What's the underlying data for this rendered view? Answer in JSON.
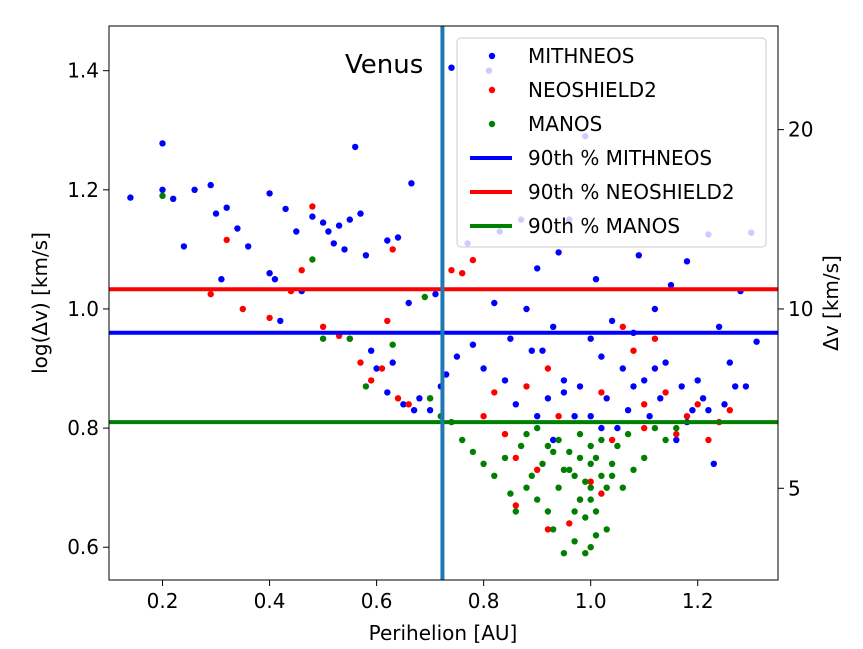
{
  "chart_data": {
    "type": "scatter",
    "xlabel": "Perihelion [AU]",
    "ylabel": "log(Δv) [km/s]",
    "y2label": "Δv [km/s]",
    "xlim": [
      0.1,
      1.35
    ],
    "ylim": [
      0.545,
      1.475
    ],
    "x_ticks": [
      0.2,
      0.4,
      0.6,
      0.8,
      1.0,
      1.2
    ],
    "x_tick_labels": [
      "0.2",
      "0.4",
      "0.6",
      "0.8",
      "1.0",
      "1.2"
    ],
    "y_ticks": [
      0.6,
      0.8,
      1.0,
      1.2,
      1.4
    ],
    "y_tick_labels": [
      "0.6",
      "0.8",
      "1.0",
      "1.2",
      "1.4"
    ],
    "y2_ticks": [
      5,
      10,
      20
    ],
    "y2_tick_labels": [
      "5",
      "10",
      "20"
    ],
    "annotation": {
      "text": "Venus",
      "x": 0.723
    },
    "legend": {
      "placement": "top-right",
      "entries": [
        {
          "label": "MITHNEOS",
          "kind": "marker",
          "color": "#0000ff"
        },
        {
          "label": "NEOSHIELD2",
          "kind": "marker",
          "color": "#ff0000"
        },
        {
          "label": "MANOS",
          "kind": "marker",
          "color": "#008000"
        },
        {
          "label": "90th % MITHNEOS",
          "kind": "line",
          "color": "#0000ff"
        },
        {
          "label": "90th % NEOSHIELD2",
          "kind": "line",
          "color": "#ff0000"
        },
        {
          "label": "90th % MANOS",
          "kind": "line",
          "color": "#008000"
        }
      ]
    },
    "hlines": [
      {
        "name": "90th % MITHNEOS",
        "y": 0.96,
        "color": "#0000ff"
      },
      {
        "name": "90th % NEOSHIELD2",
        "y": 1.033,
        "color": "#ff0000"
      },
      {
        "name": "90th % MANOS",
        "y": 0.81,
        "color": "#008000"
      }
    ],
    "vlines": [
      {
        "name": "Venus",
        "x": 0.723,
        "color": "#1f77b4"
      }
    ],
    "series": [
      {
        "name": "MITHNEOS",
        "color": "#0000ff",
        "points": [
          [
            0.14,
            1.187
          ],
          [
            0.2,
            1.278
          ],
          [
            0.2,
            1.2
          ],
          [
            0.22,
            1.185
          ],
          [
            0.24,
            1.105
          ],
          [
            0.26,
            1.2
          ],
          [
            0.29,
            1.208
          ],
          [
            0.3,
            1.16
          ],
          [
            0.31,
            1.05
          ],
          [
            0.32,
            1.17
          ],
          [
            0.34,
            1.135
          ],
          [
            0.36,
            1.105
          ],
          [
            0.4,
            1.194
          ],
          [
            0.4,
            1.06
          ],
          [
            0.41,
            1.05
          ],
          [
            0.42,
            0.98
          ],
          [
            0.43,
            1.168
          ],
          [
            0.45,
            1.13
          ],
          [
            0.46,
            1.03
          ],
          [
            0.48,
            1.155
          ],
          [
            0.5,
            1.145
          ],
          [
            0.51,
            1.13
          ],
          [
            0.52,
            1.11
          ],
          [
            0.53,
            1.14
          ],
          [
            0.54,
            1.1
          ],
          [
            0.55,
            1.15
          ],
          [
            0.56,
            1.272
          ],
          [
            0.57,
            1.16
          ],
          [
            0.58,
            1.09
          ],
          [
            0.59,
            0.93
          ],
          [
            0.6,
            0.9
          ],
          [
            0.62,
            1.115
          ],
          [
            0.62,
            0.86
          ],
          [
            0.63,
            0.91
          ],
          [
            0.64,
            1.12
          ],
          [
            0.65,
            0.84
          ],
          [
            0.66,
            1.01
          ],
          [
            0.665,
            1.211
          ],
          [
            0.67,
            0.83
          ],
          [
            0.68,
            0.85
          ],
          [
            0.7,
            0.83
          ],
          [
            0.71,
            1.025
          ],
          [
            0.72,
            0.87
          ],
          [
            0.73,
            0.89
          ],
          [
            0.74,
            1.405
          ],
          [
            0.75,
            0.92
          ],
          [
            0.77,
            1.11
          ],
          [
            0.78,
            0.94
          ],
          [
            0.8,
            0.9
          ],
          [
            0.81,
            1.4
          ],
          [
            0.82,
            1.01
          ],
          [
            0.83,
            1.13
          ],
          [
            0.84,
            0.88
          ],
          [
            0.85,
            0.95
          ],
          [
            0.86,
            0.84
          ],
          [
            0.87,
            1.15
          ],
          [
            0.88,
            1.0
          ],
          [
            0.89,
            0.93
          ],
          [
            0.9,
            1.068
          ],
          [
            0.91,
            0.93
          ],
          [
            0.92,
            0.85
          ],
          [
            0.93,
            0.97
          ],
          [
            0.94,
            1.095
          ],
          [
            0.95,
            0.88
          ],
          [
            0.96,
            1.15
          ],
          [
            0.97,
            0.82
          ],
          [
            0.98,
            0.87
          ],
          [
            0.99,
            1.29
          ],
          [
            1.0,
            0.95
          ],
          [
            1.0,
            0.82
          ],
          [
            1.01,
            1.05
          ],
          [
            1.02,
            0.92
          ],
          [
            1.03,
            0.85
          ],
          [
            1.04,
            0.98
          ],
          [
            1.05,
            0.8
          ],
          [
            1.06,
            0.9
          ],
          [
            1.07,
            0.83
          ],
          [
            1.08,
            0.96
          ],
          [
            1.09,
            1.09
          ],
          [
            1.1,
            0.88
          ],
          [
            1.11,
            0.82
          ],
          [
            1.12,
            1.0
          ],
          [
            1.13,
            0.85
          ],
          [
            1.14,
            0.91
          ],
          [
            1.15,
            1.04
          ],
          [
            1.16,
            0.78
          ],
          [
            1.17,
            0.87
          ],
          [
            1.18,
            1.08
          ],
          [
            1.19,
            0.83
          ],
          [
            1.2,
            0.88
          ],
          [
            1.21,
            0.85
          ],
          [
            1.22,
            1.125
          ],
          [
            1.23,
            0.74
          ],
          [
            1.24,
            0.97
          ],
          [
            1.25,
            0.84
          ],
          [
            1.26,
            0.91
          ],
          [
            1.27,
            0.87
          ],
          [
            1.28,
            1.03
          ],
          [
            1.29,
            0.87
          ],
          [
            1.3,
            1.128
          ],
          [
            1.31,
            0.945
          ],
          [
            0.9,
            0.82
          ],
          [
            0.93,
            0.78
          ],
          [
            0.95,
            0.86
          ],
          [
            1.02,
            0.8
          ],
          [
            1.08,
            0.87
          ],
          [
            1.12,
            0.9
          ],
          [
            1.18,
            0.81
          ],
          [
            1.22,
            0.83
          ]
        ]
      },
      {
        "name": "NEOSHIELD2",
        "color": "#ff0000",
        "points": [
          [
            0.29,
            1.025
          ],
          [
            0.32,
            1.116
          ],
          [
            0.35,
            1.0
          ],
          [
            0.4,
            0.985
          ],
          [
            0.44,
            1.03
          ],
          [
            0.46,
            1.065
          ],
          [
            0.48,
            1.172
          ],
          [
            0.5,
            0.97
          ],
          [
            0.53,
            0.955
          ],
          [
            0.55,
            0.95
          ],
          [
            0.57,
            0.91
          ],
          [
            0.59,
            0.88
          ],
          [
            0.61,
            0.9
          ],
          [
            0.62,
            0.98
          ],
          [
            0.63,
            1.1
          ],
          [
            0.64,
            0.85
          ],
          [
            0.66,
            0.84
          ],
          [
            0.7,
            0.85
          ],
          [
            0.74,
            1.065
          ],
          [
            0.76,
            1.06
          ],
          [
            0.78,
            1.082
          ],
          [
            0.8,
            0.82
          ],
          [
            0.82,
            0.86
          ],
          [
            0.84,
            0.79
          ],
          [
            0.86,
            0.75
          ],
          [
            0.88,
            0.87
          ],
          [
            0.9,
            0.73
          ],
          [
            0.92,
            0.9
          ],
          [
            0.94,
            0.82
          ],
          [
            0.96,
            0.64
          ],
          [
            0.98,
            0.68
          ],
          [
            1.0,
            0.71
          ],
          [
            1.02,
            0.86
          ],
          [
            1.04,
            0.78
          ],
          [
            1.06,
            0.97
          ],
          [
            1.08,
            0.93
          ],
          [
            1.1,
            0.84
          ],
          [
            1.12,
            0.95
          ],
          [
            1.14,
            0.86
          ],
          [
            1.16,
            0.79
          ],
          [
            1.18,
            0.82
          ],
          [
            1.2,
            0.84
          ],
          [
            1.22,
            0.78
          ],
          [
            1.24,
            0.81
          ],
          [
            1.26,
            0.83
          ],
          [
            0.86,
            0.67
          ],
          [
            0.92,
            0.63
          ],
          [
            1.02,
            0.69
          ],
          [
            1.1,
            0.8
          ]
        ]
      },
      {
        "name": "MANOS",
        "color": "#008000",
        "points": [
          [
            0.2,
            1.19
          ],
          [
            0.48,
            1.083
          ],
          [
            0.5,
            0.95
          ],
          [
            0.55,
            0.95
          ],
          [
            0.58,
            0.87
          ],
          [
            0.63,
            0.94
          ],
          [
            0.69,
            1.02
          ],
          [
            0.7,
            0.85
          ],
          [
            0.72,
            0.82
          ],
          [
            0.74,
            0.81
          ],
          [
            0.76,
            0.78
          ],
          [
            0.78,
            0.76
          ],
          [
            0.8,
            0.74
          ],
          [
            0.82,
            0.72
          ],
          [
            0.84,
            0.75
          ],
          [
            0.85,
            0.69
          ],
          [
            0.86,
            0.66
          ],
          [
            0.87,
            0.77
          ],
          [
            0.88,
            0.7
          ],
          [
            0.89,
            0.72
          ],
          [
            0.9,
            0.68
          ],
          [
            0.91,
            0.74
          ],
          [
            0.92,
            0.66
          ],
          [
            0.93,
            0.63
          ],
          [
            0.94,
            0.7
          ],
          [
            0.95,
            0.59
          ],
          [
            0.96,
            0.73
          ],
          [
            0.97,
            0.61
          ],
          [
            0.98,
            0.68
          ],
          [
            0.99,
            0.65
          ],
          [
            1.0,
            0.7
          ],
          [
            1.0,
            0.6
          ],
          [
            1.01,
            0.66
          ],
          [
            1.02,
            0.72
          ],
          [
            1.03,
            0.63
          ],
          [
            1.04,
            0.74
          ],
          [
            1.05,
            0.77
          ],
          [
            1.06,
            0.7
          ],
          [
            1.07,
            0.79
          ],
          [
            1.08,
            0.73
          ],
          [
            1.1,
            0.75
          ],
          [
            1.12,
            0.8
          ],
          [
            1.14,
            0.78
          ],
          [
            1.16,
            0.8
          ],
          [
            0.88,
            0.79
          ],
          [
            0.9,
            0.8
          ],
          [
            0.92,
            0.77
          ],
          [
            0.94,
            0.78
          ],
          [
            0.96,
            0.76
          ],
          [
            0.98,
            0.79
          ],
          [
            1.0,
            0.77
          ],
          [
            1.02,
            0.78
          ],
          [
            1.0,
            0.74
          ],
          [
            0.97,
            0.72
          ],
          [
            0.95,
            0.73
          ],
          [
            1.03,
            0.7
          ],
          [
            0.99,
            0.71
          ],
          [
            0.98,
            0.75
          ],
          [
            1.01,
            0.75
          ],
          [
            0.93,
            0.76
          ],
          [
            1.04,
            0.72
          ],
          [
            1.0,
            0.68
          ],
          [
            0.97,
            0.66
          ],
          [
            1.01,
            0.62
          ],
          [
            0.99,
            0.59
          ]
        ]
      }
    ]
  }
}
